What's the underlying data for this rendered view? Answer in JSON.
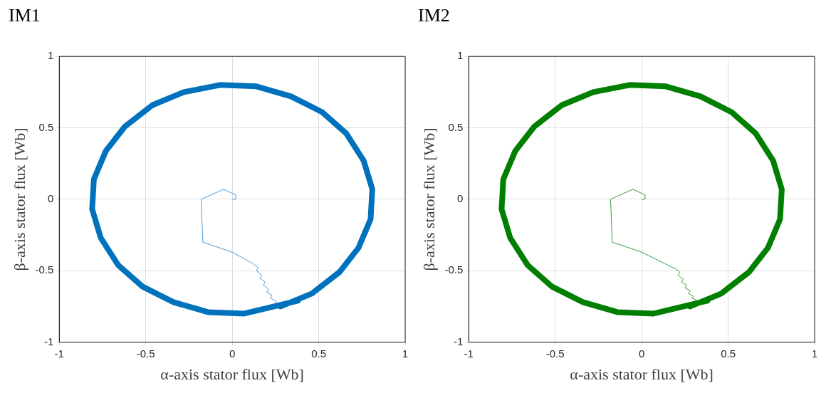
{
  "chart_data": [
    {
      "type": "line",
      "title": "IM1",
      "xlabel": "α-axis stator flux [Wb]",
      "ylabel": "β-axis stator flux [Wb]",
      "xlim": [
        -1,
        1
      ],
      "ylim": [
        -1,
        1
      ],
      "xticks": [
        -1,
        -0.5,
        0,
        0.5,
        1
      ],
      "yticks": [
        -1,
        -0.5,
        0,
        0.5,
        1
      ],
      "grid": true,
      "legend": false,
      "marker": "none",
      "line_style": "solid",
      "series": [
        {
          "color": "#0072bd",
          "x": [
            0.28,
            0.46,
            0.62,
            0.73,
            0.8,
            0.81,
            0.76,
            0.66,
            0.52,
            0.34,
            0.14,
            -0.07,
            -0.28,
            -0.46,
            -0.62,
            -0.73,
            -0.8,
            -0.81,
            -0.76,
            -0.66,
            -0.52,
            -0.34,
            -0.14,
            0.07,
            0.38
          ],
          "values": [
            -0.75,
            -0.66,
            -0.51,
            -0.34,
            -0.14,
            0.07,
            0.27,
            0.46,
            0.61,
            0.72,
            0.79,
            0.8,
            0.75,
            0.66,
            0.51,
            0.34,
            0.14,
            -0.07,
            -0.27,
            -0.46,
            -0.61,
            -0.72,
            -0.79,
            -0.8,
            -0.71
          ]
        },
        {
          "color": "#4a9bd8",
          "x": [
            0,
            0.02,
            0.02,
            -0.05,
            -0.18,
            -0.17,
            0,
            0.12,
            0.15,
            0.14,
            0.17,
            0.16,
            0.19,
            0.18,
            0.21,
            0.2,
            0.23,
            0.22,
            0.25,
            0.26
          ],
          "values": [
            0,
            0,
            0.03,
            0.07,
            0,
            -0.3,
            -0.37,
            -0.45,
            -0.48,
            -0.5,
            -0.53,
            -0.55,
            -0.58,
            -0.6,
            -0.63,
            -0.65,
            -0.67,
            -0.69,
            -0.71,
            -0.73
          ]
        }
      ]
    },
    {
      "type": "line",
      "title": "IM2",
      "xlabel": "α-axis stator flux [Wb]",
      "ylabel": "β-axis stator flux [Wb]",
      "xlim": [
        -1,
        1
      ],
      "ylim": [
        -1,
        1
      ],
      "xticks": [
        -1,
        -0.5,
        0,
        0.5,
        1
      ],
      "yticks": [
        -1,
        -0.5,
        0,
        0.5,
        1
      ],
      "grid": true,
      "legend": false,
      "marker": "none",
      "line_style": "solid",
      "series": [
        {
          "color": "#007f00",
          "x": [
            0.28,
            0.46,
            0.62,
            0.73,
            0.8,
            0.81,
            0.76,
            0.66,
            0.52,
            0.34,
            0.14,
            -0.07,
            -0.28,
            -0.46,
            -0.62,
            -0.73,
            -0.8,
            -0.81,
            -0.76,
            -0.66,
            -0.52,
            -0.34,
            -0.14,
            0.07,
            0.38
          ],
          "values": [
            -0.75,
            -0.66,
            -0.51,
            -0.34,
            -0.14,
            0.07,
            0.27,
            0.46,
            0.61,
            0.72,
            0.79,
            0.8,
            0.75,
            0.66,
            0.51,
            0.34,
            0.14,
            -0.07,
            -0.27,
            -0.46,
            -0.61,
            -0.72,
            -0.79,
            -0.8,
            -0.71
          ]
        },
        {
          "color": "#3c9a3c",
          "x": [
            0,
            0.02,
            0.02,
            -0.05,
            -0.18,
            -0.17,
            0,
            0.2,
            0.22,
            0.21,
            0.24,
            0.23,
            0.26,
            0.25,
            0.28,
            0.27,
            0.3,
            0.29,
            0.32
          ],
          "values": [
            0,
            0,
            0.03,
            0.07,
            0,
            -0.3,
            -0.37,
            -0.49,
            -0.51,
            -0.53,
            -0.56,
            -0.58,
            -0.6,
            -0.62,
            -0.64,
            -0.66,
            -0.68,
            -0.69,
            -0.71
          ]
        }
      ]
    }
  ]
}
